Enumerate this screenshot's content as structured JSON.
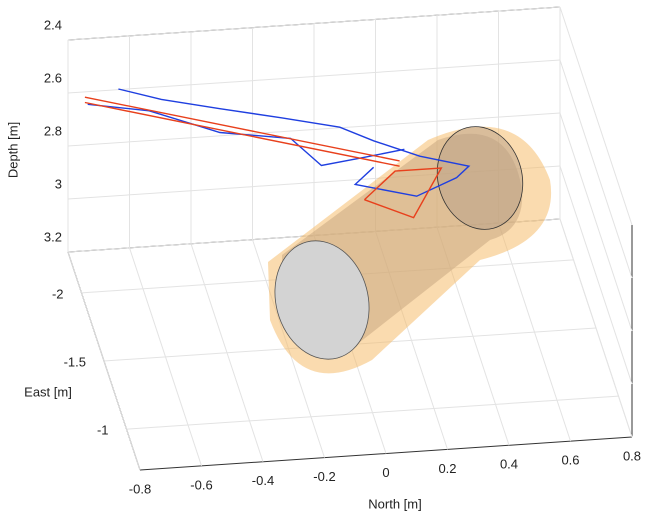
{
  "chart_data": {
    "type": "line3d",
    "xlabel": "North [m]",
    "ylabel": "East [m]",
    "zlabel": "Depth [m]",
    "xlim": [
      -0.8,
      0.8
    ],
    "xticks": [
      -0.8,
      -0.6,
      -0.4,
      -0.2,
      0,
      0.2,
      0.4,
      0.6,
      0.8
    ],
    "ylim": [
      -2.3,
      -0.7
    ],
    "yticks": [
      -2,
      -1.5,
      -1
    ],
    "zlim": [
      2.4,
      3.2
    ],
    "zticks": [
      2.4,
      2.6,
      2.8,
      3,
      3.2
    ],
    "zreverse": true,
    "grid": true,
    "series": [
      {
        "color": "#1f3fe0",
        "x": [
          -0.68,
          -0.54,
          -0.35,
          -0.15,
          0.04,
          0.15,
          0.3,
          0.46,
          0.42,
          0.29,
          0.09,
          0.15
        ],
        "y": [
          -2,
          -2,
          -2,
          -2,
          -2,
          -2,
          -2,
          -2,
          -2,
          -2,
          -2,
          -2
        ],
        "z": [
          2.44,
          2.49,
          2.54,
          2.59,
          2.64,
          2.7,
          2.77,
          2.82,
          2.86,
          2.92,
          2.86,
          2.8
        ]
      },
      {
        "color": "#1f3fe0",
        "x": [
          -0.78,
          -0.58,
          -0.35,
          -0.12,
          -0.02,
          0.12,
          0.25
        ],
        "y": [
          -2,
          -2,
          -2,
          -2,
          -2,
          -2,
          -2
        ],
        "z": [
          2.49,
          2.53,
          2.63,
          2.67,
          2.78,
          2.76,
          2.74
        ]
      },
      {
        "color": "#e8401c",
        "x": [
          -0.745,
          0.22
        ],
        "y": [
          -2.3,
          -1.9
        ],
        "z": [
          2.62,
          2.73
        ]
      },
      {
        "color": "#e8401c",
        "x": [
          -0.745,
          0.22
        ],
        "y": [
          -2.3,
          -1.9
        ],
        "z": [
          2.64,
          2.75
        ]
      },
      {
        "color": "#e8401c",
        "x": [
          0.12,
          0.22,
          0.37,
          0.28,
          0.12
        ],
        "y": [
          -2,
          -2,
          -2,
          -2,
          -2
        ],
        "z": [
          2.92,
          2.82,
          2.82,
          3,
          2.92
        ]
      }
    ]
  }
}
